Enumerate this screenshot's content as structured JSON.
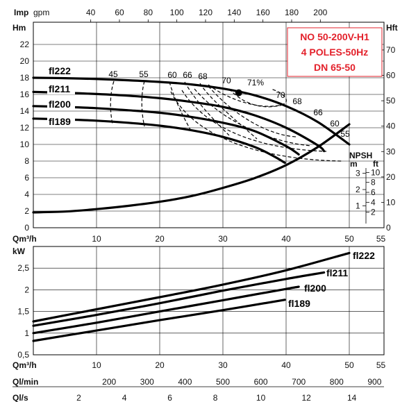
{
  "title": {
    "lines": [
      "NO 50-200V-H1",
      "4 POLES-50Hz",
      "DN 65-50"
    ],
    "color": "#e3212b"
  },
  "head_chart": {
    "top_axis": {
      "label_bold": "Imp",
      "label_unit": "gpm",
      "ticks": [
        "40",
        "60",
        "80",
        "100",
        "120",
        "140",
        "160",
        "180",
        "200"
      ],
      "values": [
        40,
        60,
        80,
        100,
        120,
        140,
        160,
        180,
        200
      ]
    },
    "left_axis": {
      "label": "Hm",
      "ticks": [
        "0",
        "2",
        "4",
        "6",
        "8",
        "10",
        "12",
        "14",
        "16",
        "18",
        "20",
        "22"
      ],
      "values": [
        0,
        2,
        4,
        6,
        8,
        10,
        12,
        14,
        16,
        18,
        20,
        22
      ]
    },
    "right_axis": {
      "label": "Hft",
      "ticks": [
        "0",
        "10",
        "20",
        "30",
        "40",
        "50",
        "60",
        "70"
      ],
      "values": [
        0,
        10,
        20,
        30,
        40,
        50,
        60,
        70
      ]
    },
    "x_axis": {
      "label": "Qm³/h",
      "ticks": [
        "10",
        "20",
        "30",
        "40",
        "50",
        "55"
      ],
      "values": [
        10,
        20,
        30,
        40,
        50,
        55
      ]
    },
    "npsh": {
      "label": "NPSH",
      "unit_m": "m",
      "unit_ft": "ft",
      "m_ticks": [
        "1",
        "2",
        "3"
      ],
      "m_values": [
        1,
        2,
        3
      ],
      "ft_ticks": [
        "2",
        "4",
        "6",
        "8",
        "10"
      ],
      "ft_values": [
        2,
        4,
        6,
        8,
        10
      ]
    }
  },
  "power_chart": {
    "left_axis": {
      "label": "kW",
      "ticks": [
        "0,5",
        "1",
        "1,5",
        "2",
        "2,5"
      ],
      "values": [
        0.5,
        1,
        1.5,
        2,
        2.5
      ]
    },
    "x_axis": {
      "label": "Qm³/h",
      "ticks": [
        "10",
        "20",
        "30",
        "40",
        "50",
        "55"
      ],
      "values": [
        10,
        20,
        30,
        40,
        50,
        55
      ]
    }
  },
  "bottom_axes": {
    "ql_min": {
      "label": "Ql/min",
      "ticks": [
        "200",
        "300",
        "400",
        "500",
        "600",
        "700",
        "800",
        "900"
      ],
      "values": [
        200,
        300,
        400,
        500,
        600,
        700,
        800,
        900
      ]
    },
    "ql_s": {
      "label": "Ql/s",
      "ticks": [
        "2",
        "4",
        "6",
        "8",
        "10",
        "12",
        "14"
      ],
      "values": [
        2,
        4,
        6,
        8,
        10,
        12,
        14
      ]
    }
  },
  "chart_data": [
    {
      "type": "line",
      "xlabel": "Qm³/h",
      "ylabel": "Hm",
      "xlim": [
        0,
        55
      ],
      "ylim": [
        0,
        24
      ],
      "series": [
        {
          "name": "fl222",
          "x": [
            0,
            5,
            10,
            15,
            20,
            25,
            30,
            35,
            40,
            45,
            50
          ],
          "y": [
            18.0,
            17.95,
            17.85,
            17.7,
            17.5,
            17.2,
            16.7,
            15.9,
            14.6,
            12.7,
            10.0
          ]
        },
        {
          "name": "fl211",
          "x": [
            0,
            5,
            10,
            15,
            20,
            25,
            30,
            35,
            40,
            45,
            46
          ],
          "y": [
            16.3,
            16.2,
            16.05,
            15.85,
            15.55,
            15.1,
            14.5,
            13.5,
            12.0,
            9.9,
            9.2
          ]
        },
        {
          "name": "fl200",
          "x": [
            0,
            5,
            10,
            15,
            20,
            25,
            30,
            35,
            40,
            42
          ],
          "y": [
            14.6,
            14.5,
            14.35,
            14.1,
            13.8,
            13.3,
            12.6,
            11.6,
            9.8,
            8.8
          ]
        },
        {
          "name": "fl189",
          "x": [
            0,
            5,
            10,
            15,
            20,
            25,
            30,
            35,
            38,
            39.8
          ],
          "y": [
            13.1,
            13.0,
            12.85,
            12.6,
            12.25,
            11.7,
            10.9,
            9.7,
            8.6,
            7.8
          ]
        }
      ],
      "efficiency_labels": [
        "45",
        "55",
        "60",
        "66",
        "68",
        "70",
        "71%",
        "70",
        "68",
        "66",
        "60",
        "55"
      ],
      "best_point": {
        "x": 32.5,
        "y": 16.2
      }
    },
    {
      "type": "line",
      "xlabel": "Qm³/h",
      "ylabel": "NPSH m",
      "xlim": [
        0,
        55
      ],
      "series": [
        {
          "name": "NPSH",
          "x": [
            0,
            5,
            10,
            15,
            20,
            25,
            30,
            35,
            40,
            45,
            50
          ],
          "y": [
            0.6,
            0.65,
            0.8,
            1.0,
            1.25,
            1.6,
            2.1,
            2.7,
            3.5,
            4.6,
            6.0
          ]
        }
      ]
    },
    {
      "type": "line",
      "xlabel": "Qm³/h",
      "ylabel": "kW",
      "xlim": [
        0,
        55
      ],
      "ylim": [
        0.5,
        3.0
      ],
      "series": [
        {
          "name": "fl222",
          "x": [
            0,
            10,
            20,
            30,
            40,
            50
          ],
          "y": [
            1.27,
            1.55,
            1.83,
            2.12,
            2.45,
            2.85
          ]
        },
        {
          "name": "fl211",
          "x": [
            0,
            10,
            20,
            30,
            40,
            46
          ],
          "y": [
            1.17,
            1.42,
            1.69,
            1.98,
            2.25,
            2.4
          ]
        },
        {
          "name": "fl200",
          "x": [
            0,
            10,
            20,
            30,
            40,
            42
          ],
          "y": [
            1.0,
            1.24,
            1.5,
            1.76,
            2.02,
            2.07
          ]
        },
        {
          "name": "fl189",
          "x": [
            0,
            10,
            20,
            30,
            39.8
          ],
          "y": [
            0.82,
            1.06,
            1.3,
            1.53,
            1.77
          ]
        }
      ]
    }
  ]
}
